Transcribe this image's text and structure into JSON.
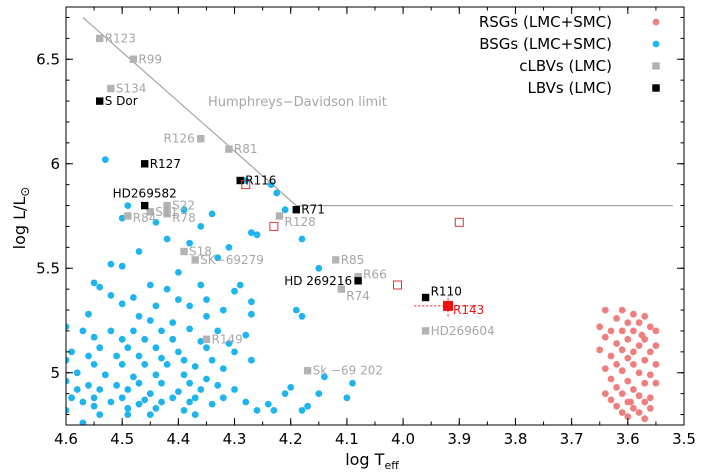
{
  "chart_data": {
    "type": "scatter",
    "xlabel_main": "log T",
    "xlabel_sub": "eff",
    "ylabel_main": "log L/L",
    "ylabel_sub": "⊙",
    "xlim": [
      4.6,
      3.5
    ],
    "ylim": [
      4.75,
      6.75
    ],
    "x_ticks": [
      4.6,
      4.5,
      4.4,
      4.3,
      4.2,
      4.1,
      4.0,
      3.9,
      3.8,
      3.7,
      3.6,
      3.5
    ],
    "x_tick_labels": [
      "4.6",
      "4.5",
      "4.4",
      "4.3",
      "4.2",
      "4.1",
      "4.0",
      "3.9",
      "3.8",
      "3.7",
      "3.6",
      "3.5"
    ],
    "y_ticks": [
      5.0,
      5.5,
      6.0,
      6.5
    ],
    "y_tick_labels": [
      "5",
      "5.5",
      "6",
      "6.5"
    ],
    "x_minor_step": 0.05,
    "y_minor_step": 0.1,
    "legend_position": "top-right",
    "hd_limit": {
      "label": "Humphreys−Davidson limit",
      "color": "#a6a6a6",
      "points": [
        [
          4.57,
          6.7
        ],
        [
          4.19,
          5.8
        ],
        [
          3.52,
          5.8
        ]
      ]
    },
    "series": [
      {
        "name": "RSGs (LMC+SMC)",
        "color": "#ef7f7f",
        "marker": "circle",
        "points": [
          [
            3.64,
            5.3
          ],
          [
            3.61,
            5.3
          ],
          [
            3.59,
            5.28
          ],
          [
            3.62,
            5.26
          ],
          [
            3.57,
            5.27
          ],
          [
            3.6,
            5.24
          ],
          [
            3.58,
            5.24
          ],
          [
            3.65,
            5.22
          ],
          [
            3.56,
            5.22
          ],
          [
            3.63,
            5.2
          ],
          [
            3.61,
            5.2
          ],
          [
            3.59,
            5.2
          ],
          [
            3.55,
            5.2
          ],
          [
            3.64,
            5.17
          ],
          [
            3.6,
            5.16
          ],
          [
            3.57,
            5.16
          ],
          [
            3.62,
            5.14
          ],
          [
            3.58,
            5.13
          ],
          [
            3.55,
            5.13
          ],
          [
            3.65,
            5.11
          ],
          [
            3.61,
            5.11
          ],
          [
            3.59,
            5.1
          ],
          [
            3.56,
            5.1
          ],
          [
            3.63,
            5.08
          ],
          [
            3.6,
            5.07
          ],
          [
            3.57,
            5.06
          ],
          [
            3.62,
            5.04
          ],
          [
            3.59,
            5.04
          ],
          [
            3.55,
            5.04
          ],
          [
            3.64,
            5.02
          ],
          [
            3.61,
            5.01
          ],
          [
            3.58,
            5.0
          ],
          [
            3.56,
            4.99
          ],
          [
            3.63,
            4.97
          ],
          [
            3.6,
            4.96
          ],
          [
            3.57,
            4.95
          ],
          [
            3.55,
            4.95
          ],
          [
            3.62,
            4.93
          ],
          [
            3.59,
            4.92
          ],
          [
            3.64,
            4.9
          ],
          [
            3.61,
            4.9
          ],
          [
            3.58,
            4.89
          ],
          [
            3.56,
            4.88
          ],
          [
            3.63,
            4.87
          ],
          [
            3.6,
            4.86
          ],
          [
            3.57,
            4.86
          ],
          [
            3.62,
            4.84
          ],
          [
            3.59,
            4.83
          ],
          [
            3.56,
            4.83
          ],
          [
            3.61,
            4.81
          ],
          [
            3.58,
            4.81
          ],
          [
            3.6,
            4.79
          ],
          [
            3.57,
            4.78
          ],
          [
            3.595,
            4.86
          ],
          [
            3.575,
            5.18
          ]
        ]
      },
      {
        "name": "BSGs (LMC+SMC)",
        "color": "#1eb4ef",
        "marker": "circle",
        "points": [
          [
            4.53,
            6.02
          ],
          [
            4.28,
            5.92
          ],
          [
            4.235,
            5.9
          ],
          [
            4.225,
            5.86
          ],
          [
            4.49,
            5.8
          ],
          [
            4.39,
            5.78
          ],
          [
            4.34,
            5.76
          ],
          [
            4.21,
            5.78
          ],
          [
            4.5,
            5.74
          ],
          [
            4.44,
            5.72
          ],
          [
            4.36,
            5.7
          ],
          [
            4.27,
            5.67
          ],
          [
            4.26,
            5.66
          ],
          [
            4.42,
            5.64
          ],
          [
            4.18,
            5.64
          ],
          [
            4.38,
            5.62
          ],
          [
            4.31,
            5.6
          ],
          [
            4.47,
            5.58
          ],
          [
            4.33,
            5.55
          ],
          [
            4.52,
            5.52
          ],
          [
            4.5,
            5.51
          ],
          [
            4.15,
            5.5
          ],
          [
            4.4,
            5.48
          ],
          [
            4.55,
            5.43
          ],
          [
            4.45,
            5.42
          ],
          [
            4.36,
            5.42
          ],
          [
            4.29,
            5.42
          ],
          [
            4.54,
            5.41
          ],
          [
            4.42,
            5.4
          ],
          [
            4.3,
            5.39
          ],
          [
            4.52,
            5.37
          ],
          [
            4.48,
            5.36
          ],
          [
            4.4,
            5.35
          ],
          [
            4.35,
            5.35
          ],
          [
            4.27,
            5.34
          ],
          [
            4.5,
            5.33
          ],
          [
            4.44,
            5.32
          ],
          [
            4.38,
            5.32
          ],
          [
            4.32,
            5.3
          ],
          [
            4.19,
            5.3
          ],
          [
            4.56,
            5.28
          ],
          [
            4.47,
            5.27
          ],
          [
            4.35,
            5.27
          ],
          [
            4.27,
            5.28
          ],
          [
            4.18,
            5.27
          ],
          [
            4.45,
            5.25
          ],
          [
            4.41,
            5.24
          ],
          [
            4.6,
            5.22
          ],
          [
            4.57,
            5.2
          ],
          [
            4.52,
            5.2
          ],
          [
            4.48,
            5.2
          ],
          [
            4.43,
            5.2
          ],
          [
            4.38,
            5.21
          ],
          [
            4.33,
            5.2
          ],
          [
            4.28,
            5.18
          ],
          [
            4.55,
            5.17
          ],
          [
            4.5,
            5.16
          ],
          [
            4.46,
            5.16
          ],
          [
            4.41,
            5.16
          ],
          [
            4.36,
            5.15
          ],
          [
            4.31,
            5.14
          ],
          [
            4.59,
            5.1
          ],
          [
            4.54,
            5.12
          ],
          [
            4.49,
            5.12
          ],
          [
            4.44,
            5.12
          ],
          [
            4.4,
            5.1
          ],
          [
            4.35,
            5.12
          ],
          [
            4.3,
            5.1
          ],
          [
            4.56,
            5.08
          ],
          [
            4.51,
            5.08
          ],
          [
            4.47,
            5.08
          ],
          [
            4.43,
            5.07
          ],
          [
            4.39,
            5.06
          ],
          [
            4.34,
            5.06
          ],
          [
            4.27,
            5.06
          ],
          [
            4.6,
            5.06
          ],
          [
            4.55,
            5.04
          ],
          [
            4.5,
            5.04
          ],
          [
            4.46,
            5.04
          ],
          [
            4.42,
            5.04
          ],
          [
            4.37,
            5.03
          ],
          [
            4.32,
            5.02
          ],
          [
            4.58,
            5.0
          ],
          [
            4.53,
            4.99
          ],
          [
            4.48,
            4.98
          ],
          [
            4.44,
            4.99
          ],
          [
            4.39,
            4.99
          ],
          [
            4.35,
            4.97
          ],
          [
            4.6,
            4.96
          ],
          [
            4.56,
            4.94
          ],
          [
            4.51,
            4.94
          ],
          [
            4.47,
            4.95
          ],
          [
            4.43,
            4.95
          ],
          [
            4.38,
            4.95
          ],
          [
            4.33,
            4.94
          ],
          [
            4.58,
            4.92
          ],
          [
            4.54,
            4.92
          ],
          [
            4.49,
            4.92
          ],
          [
            4.45,
            4.9
          ],
          [
            4.4,
            4.91
          ],
          [
            4.36,
            4.92
          ],
          [
            4.3,
            4.92
          ],
          [
            4.2,
            4.93
          ],
          [
            4.59,
            4.88
          ],
          [
            4.55,
            4.88
          ],
          [
            4.5,
            4.88
          ],
          [
            4.46,
            4.87
          ],
          [
            4.41,
            4.88
          ],
          [
            4.37,
            4.88
          ],
          [
            4.32,
            4.88
          ],
          [
            4.57,
            4.86
          ],
          [
            4.52,
            4.86
          ],
          [
            4.47,
            4.85
          ],
          [
            4.43,
            4.86
          ],
          [
            4.38,
            4.86
          ],
          [
            4.34,
            4.85
          ],
          [
            4.28,
            4.86
          ],
          [
            4.55,
            4.84
          ],
          [
            4.49,
            4.83
          ],
          [
            4.44,
            4.83
          ],
          [
            4.39,
            4.82
          ],
          [
            4.6,
            4.82
          ],
          [
            4.54,
            4.8
          ],
          [
            4.49,
            4.8
          ],
          [
            4.45,
            4.8
          ],
          [
            4.37,
            4.8
          ],
          [
            4.26,
            4.82
          ],
          [
            4.17,
            4.84
          ],
          [
            4.14,
            4.98
          ],
          [
            4.09,
            4.95
          ],
          [
            4.24,
            4.85
          ],
          [
            4.21,
            4.9
          ],
          [
            4.15,
            4.9
          ],
          [
            4.1,
            4.88
          ],
          [
            4.18,
            4.82
          ],
          [
            4.23,
            4.82
          ],
          [
            4.57,
            4.76
          ]
        ]
      },
      {
        "name": "cLBVs (LMC)",
        "color": "#b3b3b3",
        "marker": "square",
        "points": [
          [
            4.54,
            6.6
          ],
          [
            4.52,
            6.36
          ],
          [
            4.48,
            6.5
          ],
          [
            4.36,
            6.12
          ],
          [
            4.31,
            6.07
          ],
          [
            4.22,
            5.75
          ],
          [
            4.49,
            5.75
          ],
          [
            4.45,
            5.77
          ],
          [
            4.42,
            5.8
          ],
          [
            4.42,
            5.77
          ],
          [
            4.42,
            5.76
          ],
          [
            4.39,
            5.58
          ],
          [
            4.37,
            5.54
          ],
          [
            4.12,
            5.54
          ],
          [
            4.08,
            5.46
          ],
          [
            4.11,
            5.4
          ],
          [
            3.96,
            5.2
          ],
          [
            4.35,
            5.16
          ],
          [
            4.17,
            5.01
          ]
        ]
      },
      {
        "name": "LBVs (LMC)",
        "color": "#000000",
        "marker": "square",
        "points": [
          [
            4.54,
            6.3
          ],
          [
            4.46,
            6.0
          ],
          [
            4.29,
            5.92
          ],
          [
            4.46,
            5.8
          ],
          [
            4.19,
            5.78
          ],
          [
            4.08,
            5.44
          ],
          [
            3.96,
            5.36
          ]
        ]
      }
    ],
    "open_squares": {
      "color": "#e03333",
      "points": [
        [
          4.28,
          5.9
        ],
        [
          4.23,
          5.7
        ],
        [
          4.01,
          5.42
        ],
        [
          3.9,
          5.72
        ]
      ]
    },
    "r143": {
      "color": "#ee1111",
      "point": [
        3.92,
        5.32
      ],
      "error_x": [
        3.98,
        3.87
      ],
      "error_y": [
        5.27,
        5.37
      ]
    },
    "annotations": [
      {
        "text": "R123",
        "x": 4.54,
        "y": 6.6,
        "color": "#a6a6a6"
      },
      {
        "text": "R99",
        "x": 4.48,
        "y": 6.5,
        "color": "#a6a6a6"
      },
      {
        "text": "S134",
        "x": 4.52,
        "y": 6.36,
        "color": "#a6a6a6"
      },
      {
        "text": "S Dor",
        "x": 4.54,
        "y": 6.3,
        "color": "#000000"
      },
      {
        "text": "R126",
        "x": 4.36,
        "y": 6.12,
        "color": "#a6a6a6",
        "align": "end"
      },
      {
        "text": "R81",
        "x": 4.31,
        "y": 6.07,
        "color": "#a6a6a6"
      },
      {
        "text": "R127",
        "x": 4.46,
        "y": 6.0,
        "color": "#000000"
      },
      {
        "text": "R116",
        "x": 4.29,
        "y": 5.92,
        "color": "#000000"
      },
      {
        "text": "HD269582",
        "x": 4.46,
        "y": 5.8,
        "color": "#000000",
        "above": true
      },
      {
        "text": "S22",
        "x": 4.42,
        "y": 5.8,
        "color": "#a6a6a6"
      },
      {
        "text": "S11",
        "x": 4.45,
        "y": 5.77,
        "color": "#a6a6a6"
      },
      {
        "text": "R84",
        "x": 4.49,
        "y": 5.75,
        "color": "#a6a6a6",
        "offset_y": 2
      },
      {
        "text": "R78",
        "x": 4.42,
        "y": 5.76,
        "color": "#a6a6a6",
        "offset_y": 4
      },
      {
        "text": "R71",
        "x": 4.19,
        "y": 5.78,
        "color": "#000000"
      },
      {
        "text": "R128",
        "x": 4.22,
        "y": 5.75,
        "color": "#a6a6a6",
        "offset_y": 6
      },
      {
        "text": "S18",
        "x": 4.39,
        "y": 5.58,
        "color": "#a6a6a6"
      },
      {
        "text": "SK−69279",
        "x": 4.37,
        "y": 5.54,
        "color": "#a6a6a6"
      },
      {
        "text": "R85",
        "x": 4.12,
        "y": 5.54,
        "color": "#a6a6a6"
      },
      {
        "text": "R66",
        "x": 4.08,
        "y": 5.46,
        "color": "#a6a6a6",
        "offset_y": -2
      },
      {
        "text": "HD 269216",
        "x": 4.08,
        "y": 5.44,
        "color": "#000000",
        "align": "end"
      },
      {
        "text": "R74",
        "x": 4.11,
        "y": 5.4,
        "color": "#a6a6a6",
        "offset_y": 7
      },
      {
        "text": "R110",
        "x": 3.96,
        "y": 5.36,
        "color": "#000000",
        "offset_y": -6
      },
      {
        "text": "R143",
        "x": 3.92,
        "y": 5.32,
        "color": "#ee1111",
        "offset_y": 4,
        "size": 15
      },
      {
        "text": "HD269604",
        "x": 3.96,
        "y": 5.2,
        "color": "#a6a6a6"
      },
      {
        "text": "R149",
        "x": 4.35,
        "y": 5.16,
        "color": "#a6a6a6"
      },
      {
        "text": "Sk −69 202",
        "x": 4.17,
        "y": 5.01,
        "color": "#a6a6a6"
      }
    ]
  }
}
